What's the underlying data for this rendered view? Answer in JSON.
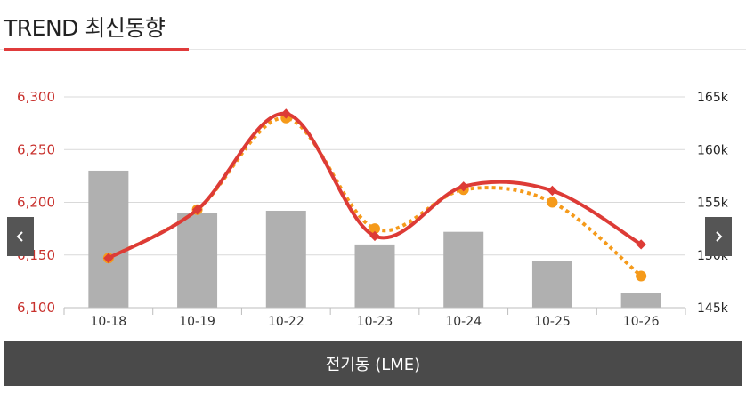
{
  "header": {
    "title": "TREND 최신동향"
  },
  "nav": {
    "prev_icon": "chevron-left-icon",
    "next_icon": "chevron-right-icon"
  },
  "footer": {
    "label": "전기동 (LME)"
  },
  "colors": {
    "price_line": "#dd3b36",
    "forecast_line": "#f59a1a",
    "bars": "#b0b0b0",
    "accent_red": "#e03b3b"
  },
  "chart_data": {
    "type": "bar+line",
    "categories": [
      "10-18",
      "10-19",
      "10-22",
      "10-23",
      "10-24",
      "10-25",
      "10-26"
    ],
    "left_axis": {
      "ylim": [
        6100,
        6300
      ],
      "ticks": [
        "6,100",
        "6,150",
        "6,200",
        "6,250",
        "6,300"
      ]
    },
    "right_axis": {
      "ylim": [
        145000,
        165000
      ],
      "ticks": [
        "145k",
        "150k",
        "155k",
        "160k",
        "165k"
      ]
    },
    "bars": {
      "axis": "right",
      "values": [
        158000,
        154000,
        154200,
        151000,
        152200,
        149400,
        146400
      ]
    },
    "series": [
      {
        "style": "solid",
        "axis": "left",
        "values": [
          6147,
          6193,
          6284,
          6168,
          6215,
          6211,
          6160
        ]
      },
      {
        "style": "dotted",
        "axis": "left",
        "values": [
          6147,
          6193,
          6280,
          6175,
          6212,
          6200,
          6130
        ]
      }
    ],
    "grid": true
  }
}
